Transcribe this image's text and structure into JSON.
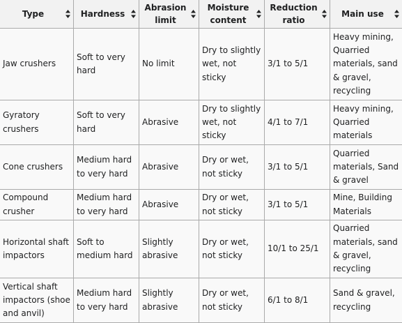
{
  "table": {
    "columns": [
      {
        "label": "Type",
        "sort_icon": "sort-arrows-icon"
      },
      {
        "label": "Hardness",
        "sort_icon": "sort-arrows-icon"
      },
      {
        "label": "Abrasion limit",
        "sort_icon": "sort-arrows-icon"
      },
      {
        "label": "Moisture content",
        "sort_icon": "sort-arrows-icon"
      },
      {
        "label": "Reduction ratio",
        "sort_icon": "sort-arrows-icon"
      },
      {
        "label": "Main use",
        "sort_icon": "sort-arrows-icon"
      }
    ],
    "rows": [
      [
        "Jaw crushers",
        "Soft to very hard",
        "No limit",
        "Dry to slightly wet, not sticky",
        "3/1 to 5/1",
        "Heavy mining, Quarried materials, sand & gravel, recycling"
      ],
      [
        "Gyratory crushers",
        "Soft to very hard",
        "Abrasive",
        "Dry to slightly wet, not sticky",
        "4/1 to 7/1",
        "Heavy mining, Quarried materials"
      ],
      [
        "Cone crushers",
        "Medium hard to very hard",
        "Abrasive",
        "Dry or wet, not sticky",
        "3/1 to 5/1",
        "Quarried materials, Sand & gravel"
      ],
      [
        "Compound crusher",
        "Medium hard to very hard",
        "Abrasive",
        "Dry or wet, not sticky",
        "3/1 to 5/1",
        "Mine, Building Materials"
      ],
      [
        "Horizontal shaft impactors",
        "Soft to medium hard",
        "Slightly abrasive",
        "Dry or wet, not sticky",
        "10/1 to 25/1",
        "Quarried materials, sand & gravel, recycling"
      ],
      [
        "Vertical shaft impactors (shoe and anvil)",
        "Medium hard to very hard",
        "Slightly abrasive",
        "Dry or wet, not sticky",
        "6/1 to 8/1",
        "Sand & gravel, recycling"
      ]
    ]
  }
}
